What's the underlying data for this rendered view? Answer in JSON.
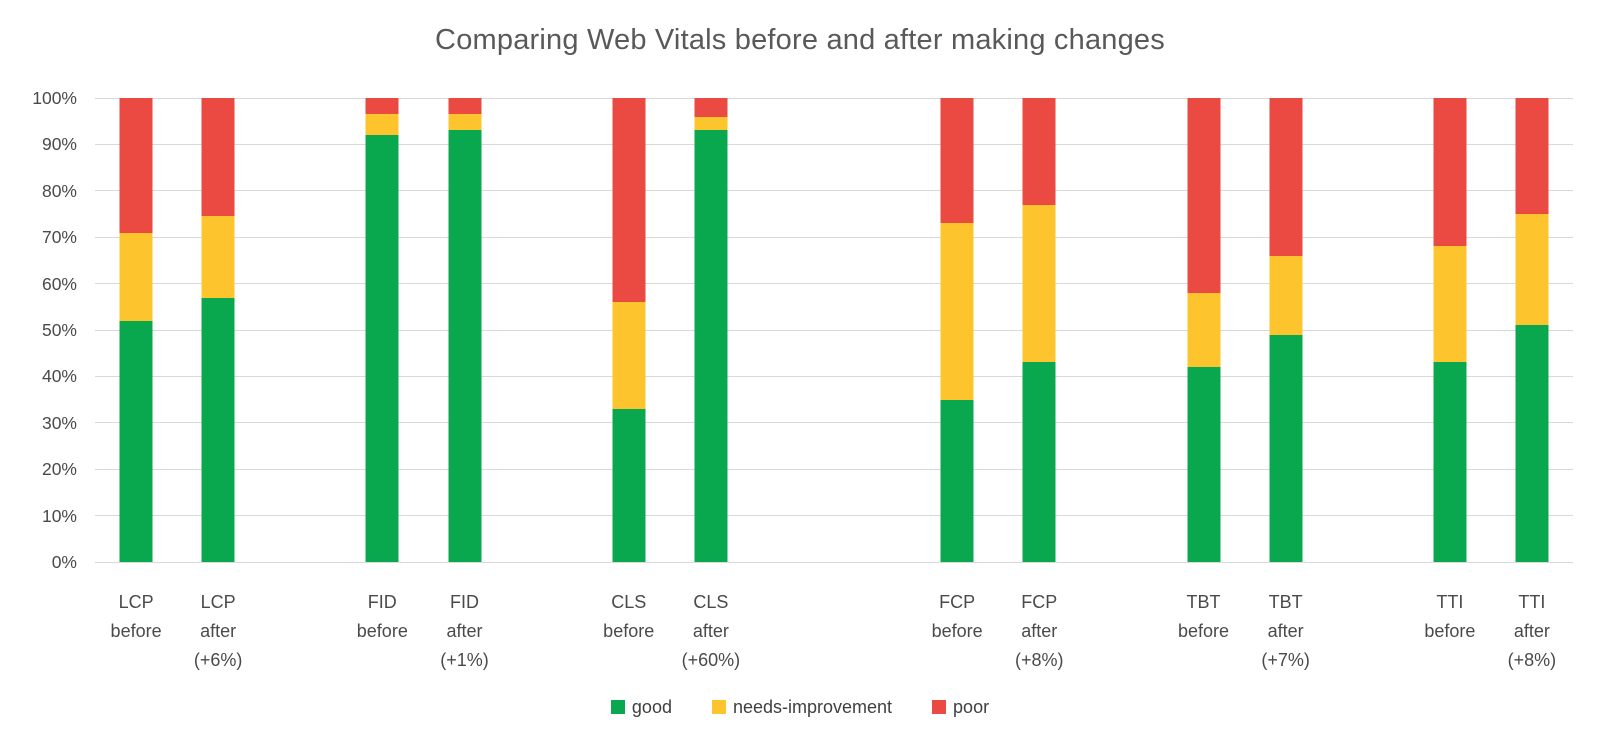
{
  "title": "Comparing Web Vitals before and after making changes",
  "chart_data": {
    "type": "bar",
    "stacked": true,
    "title": "Comparing Web Vitals before and after making changes",
    "xlabel": "",
    "ylabel": "",
    "ylim": [
      0,
      100
    ],
    "grid": true,
    "legend_position": "bottom",
    "y_ticks": [
      "0%",
      "10%",
      "20%",
      "30%",
      "40%",
      "50%",
      "60%",
      "70%",
      "80%",
      "90%",
      "100%"
    ],
    "categories": [
      [
        "LCP",
        "before"
      ],
      [
        "LCP",
        "after",
        "(+6%)"
      ],
      [
        "FID",
        "before"
      ],
      [
        "FID",
        "after",
        "(+1%)"
      ],
      [
        "CLS",
        "before"
      ],
      [
        "CLS",
        "after",
        "(+60%)"
      ],
      [
        "FCP",
        "before"
      ],
      [
        "FCP",
        "after",
        "(+8%)"
      ],
      [
        "TBT",
        "before"
      ],
      [
        "TBT",
        "after",
        "(+7%)"
      ],
      [
        "TTI",
        "before"
      ],
      [
        "TTI",
        "after",
        "(+8%)"
      ]
    ],
    "series": [
      {
        "name": "good",
        "color": "#0aa84e",
        "values": [
          52,
          57,
          92,
          93,
          33,
          93,
          35,
          43,
          42,
          49,
          43,
          51
        ]
      },
      {
        "name": "needs-improvement",
        "color": "#fec42e",
        "values": [
          19,
          17.5,
          4.5,
          3.5,
          23,
          3,
          38,
          34,
          16,
          17,
          25,
          24
        ]
      },
      {
        "name": "poor",
        "color": "#ea4a41",
        "values": [
          29,
          25.5,
          3.5,
          3.5,
          44,
          4,
          27,
          23,
          42,
          34,
          32,
          25
        ]
      }
    ],
    "bar_centers_frac": [
      0.0278,
      0.0833,
      0.1944,
      0.25,
      0.3611,
      0.4167,
      0.5833,
      0.6389,
      0.75,
      0.8056,
      0.9167,
      0.9722
    ]
  },
  "colors": {
    "grid": "#d9d9d9",
    "title_text": "#595959",
    "axis_text": "#4a4a4a"
  }
}
